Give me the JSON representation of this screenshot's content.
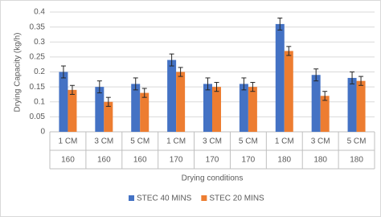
{
  "chart_data": {
    "type": "bar",
    "y_label": "Drying Capacity (kg/h)",
    "x_label": "Drying conditions",
    "categories": [
      "1 CM",
      "3 CM",
      "5 CM",
      "1 CM",
      "3 CM",
      "5 CM",
      "1 CM",
      "3 CM",
      "5 CM"
    ],
    "groups": [
      "160",
      "160",
      "160",
      "170",
      "170",
      "170",
      "180",
      "180",
      "180"
    ],
    "series": [
      {
        "name": "STEC 40 MINS",
        "color": "#4472c4",
        "values": [
          0.2,
          0.15,
          0.16,
          0.24,
          0.16,
          0.16,
          0.36,
          0.19,
          0.18
        ],
        "errors": [
          0.02,
          0.02,
          0.02,
          0.02,
          0.02,
          0.02,
          0.02,
          0.02,
          0.02
        ]
      },
      {
        "name": "STEC 20 MINS",
        "color": "#ed7d31",
        "values": [
          0.14,
          0.1,
          0.13,
          0.2,
          0.15,
          0.15,
          0.27,
          0.12,
          0.17
        ],
        "errors": [
          0.015,
          0.015,
          0.015,
          0.015,
          0.015,
          0.015,
          0.015,
          0.015,
          0.015
        ]
      }
    ],
    "ylim": [
      0,
      0.4
    ],
    "yticks": [
      0,
      0.05,
      0.1,
      0.15,
      0.2,
      0.25,
      0.3,
      0.35,
      0.4
    ],
    "grid": true,
    "legend": "bottom"
  }
}
